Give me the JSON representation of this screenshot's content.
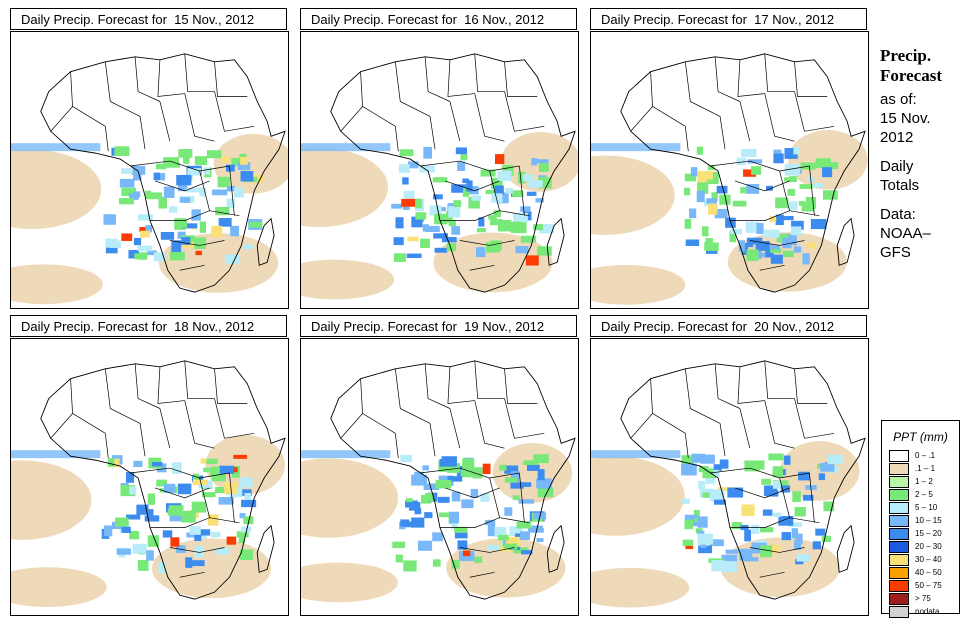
{
  "panels": [
    {
      "title": "Daily Precip. Forecast for  15 Nov., 2012",
      "date": "15 Nov., 2012"
    },
    {
      "title": "Daily Precip. Forecast for  16 Nov., 2012",
      "date": "16 Nov., 2012"
    },
    {
      "title": "Daily Precip. Forecast for  17 Nov., 2012",
      "date": "17 Nov., 2012"
    },
    {
      "title": "Daily Precip. Forecast for  18 Nov., 2012",
      "date": "18 Nov., 2012"
    },
    {
      "title": "Daily Precip. Forecast for  19 Nov., 2012",
      "date": "19 Nov., 2012"
    },
    {
      "title": "Daily Precip. Forecast for  20 Nov., 2012",
      "date": "20 Nov., 2012"
    }
  ],
  "side": {
    "heading1": "Precip.",
    "heading2": "Forecast",
    "as_of": "as of:",
    "date1": "15 Nov.",
    "date2": "2012",
    "totals1": "Daily",
    "totals2": "Totals",
    "data1": "Data:",
    "data2": "NOAA–",
    "data3": "GFS"
  },
  "legend": {
    "title": "PPT (mm)",
    "items": [
      {
        "label": "0 – .1",
        "color": "#ffffff"
      },
      {
        "label": ".1 – 1",
        "color": "#eed9b8"
      },
      {
        "label": "1 – 2",
        "color": "#b8f5a8"
      },
      {
        "label": "2 – 5",
        "color": "#78e878"
      },
      {
        "label": "5 – 10",
        "color": "#b8ecf8"
      },
      {
        "label": "10 – 15",
        "color": "#78b8f8"
      },
      {
        "label": "15 – 20",
        "color": "#3c8cf0"
      },
      {
        "label": "20 – 30",
        "color": "#1e5ae0"
      },
      {
        "label": "30 – 40",
        "color": "#fae078"
      },
      {
        "label": "40 – 50",
        "color": "#faa000"
      },
      {
        "label": "50 – 75",
        "color": "#fa3c00"
      },
      {
        "label": "> 75",
        "color": "#a01e1e"
      },
      {
        "label": "nodata",
        "color": "#d2d2d2"
      }
    ]
  }
}
